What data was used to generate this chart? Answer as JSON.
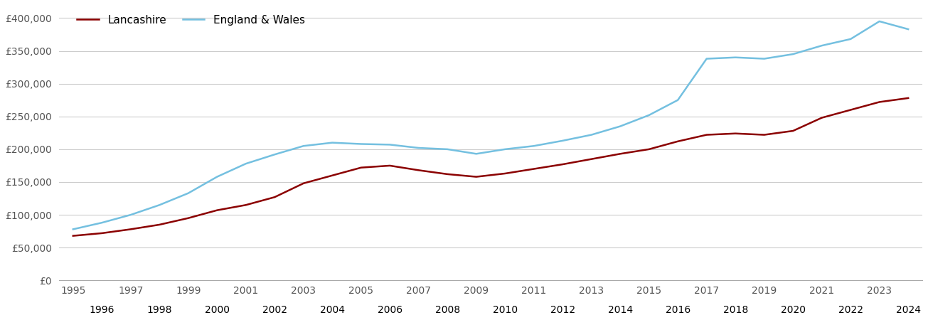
{
  "lancashire_label": "Lancashire",
  "england_wales_label": "England & Wales",
  "lancashire_color": "#8B0000",
  "england_wales_color": "#74C0E0",
  "background_color": "#ffffff",
  "grid_color": "#cccccc",
  "years": [
    1995,
    1996,
    1997,
    1998,
    1999,
    2000,
    2001,
    2002,
    2003,
    2004,
    2005,
    2006,
    2007,
    2008,
    2009,
    2010,
    2011,
    2012,
    2013,
    2014,
    2015,
    2016,
    2017,
    2018,
    2019,
    2020,
    2021,
    2022,
    2023,
    2024
  ],
  "lancashire": [
    68000,
    72000,
    78000,
    85000,
    95000,
    107000,
    115000,
    127000,
    148000,
    160000,
    172000,
    175000,
    168000,
    162000,
    158000,
    163000,
    170000,
    177000,
    185000,
    193000,
    200000,
    212000,
    222000,
    224000,
    222000,
    228000,
    248000,
    260000,
    272000,
    278000
  ],
  "england_wales": [
    78000,
    88000,
    100000,
    115000,
    133000,
    158000,
    178000,
    192000,
    205000,
    210000,
    208000,
    207000,
    202000,
    200000,
    193000,
    200000,
    205000,
    213000,
    222000,
    235000,
    252000,
    275000,
    338000,
    340000,
    338000,
    345000,
    358000,
    368000,
    395000,
    383000
  ],
  "ylim": [
    0,
    420000
  ],
  "yticks": [
    0,
    50000,
    100000,
    150000,
    200000,
    250000,
    300000,
    350000,
    400000
  ],
  "xlim_min": 1994.5,
  "xlim_max": 2024.5,
  "odd_xticks": [
    1995,
    1997,
    1999,
    2001,
    2003,
    2005,
    2007,
    2009,
    2011,
    2013,
    2015,
    2017,
    2019,
    2021,
    2023
  ],
  "even_xticks": [
    1996,
    1998,
    2000,
    2002,
    2004,
    2006,
    2008,
    2010,
    2012,
    2014,
    2016,
    2018,
    2020,
    2022,
    2024
  ],
  "line_width": 1.8,
  "legend_fontsize": 11,
  "tick_fontsize": 10,
  "ytick_color": "#555555",
  "xtick_color": "#555555"
}
